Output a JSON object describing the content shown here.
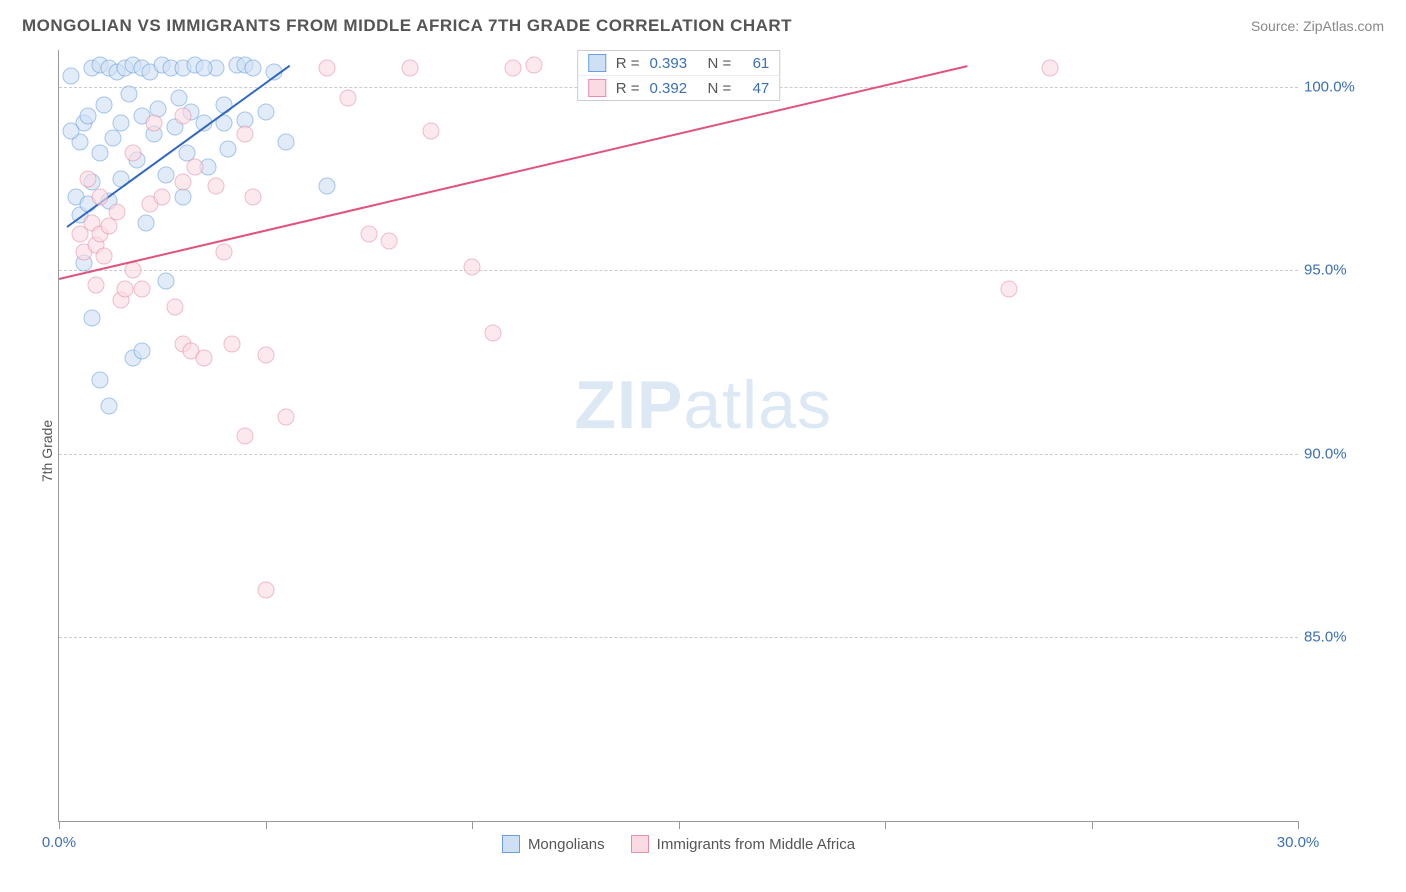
{
  "header": {
    "title": "MONGOLIAN VS IMMIGRANTS FROM MIDDLE AFRICA 7TH GRADE CORRELATION CHART",
    "source_prefix": "Source: ",
    "source_name": "ZipAtlas.com"
  },
  "chart": {
    "type": "scatter",
    "ylabel": "7th Grade",
    "xlim": [
      0,
      30
    ],
    "ylim": [
      80,
      101
    ],
    "xtick_values": [
      0,
      5,
      10,
      15,
      20,
      25,
      30
    ],
    "xtick_labels": [
      "0.0%",
      "",
      "",
      "",
      "",
      "",
      "30.0%"
    ],
    "ytick_values": [
      85,
      90,
      95,
      100
    ],
    "ytick_labels": [
      "85.0%",
      "90.0%",
      "95.0%",
      "100.0%"
    ],
    "grid_color": "#cccccc",
    "background_color": "#ffffff",
    "axis_color": "#999999",
    "tick_label_color_x": "#3b6fb5",
    "tick_label_color_y": "#3b6fb5",
    "series": [
      {
        "name": "Mongolians",
        "marker_fill": "#cfe0f5",
        "marker_stroke": "#6a9fdd",
        "line_color": "#2f66c4",
        "r_value": "0.393",
        "n_value": "61",
        "trend": {
          "x1": 0.2,
          "y1": 96.2,
          "x2": 5.6,
          "y2": 100.6
        },
        "points": [
          [
            0.4,
            97.0
          ],
          [
            0.5,
            96.5
          ],
          [
            0.5,
            98.5
          ],
          [
            0.6,
            99.0
          ],
          [
            0.7,
            96.8
          ],
          [
            0.7,
            99.2
          ],
          [
            0.8,
            97.4
          ],
          [
            0.8,
            100.5
          ],
          [
            1.0,
            98.2
          ],
          [
            1.0,
            100.6
          ],
          [
            1.1,
            99.5
          ],
          [
            1.2,
            96.9
          ],
          [
            1.2,
            100.5
          ],
          [
            1.3,
            98.6
          ],
          [
            1.4,
            100.4
          ],
          [
            1.5,
            99.0
          ],
          [
            1.5,
            97.5
          ],
          [
            1.6,
            100.5
          ],
          [
            1.7,
            99.8
          ],
          [
            1.8,
            100.6
          ],
          [
            1.9,
            98.0
          ],
          [
            2.0,
            100.5
          ],
          [
            2.0,
            99.2
          ],
          [
            2.1,
            96.3
          ],
          [
            2.2,
            100.4
          ],
          [
            2.3,
            98.7
          ],
          [
            2.4,
            99.4
          ],
          [
            2.5,
            100.6
          ],
          [
            2.6,
            97.6
          ],
          [
            2.7,
            100.5
          ],
          [
            2.8,
            98.9
          ],
          [
            2.9,
            99.7
          ],
          [
            3.0,
            100.5
          ],
          [
            3.1,
            98.2
          ],
          [
            3.2,
            99.3
          ],
          [
            3.3,
            100.6
          ],
          [
            3.5,
            99.0
          ],
          [
            3.6,
            97.8
          ],
          [
            3.8,
            100.5
          ],
          [
            4.0,
            99.5
          ],
          [
            4.1,
            98.3
          ],
          [
            4.3,
            100.6
          ],
          [
            4.5,
            99.1
          ],
          [
            0.8,
            93.7
          ],
          [
            1.0,
            92.0
          ],
          [
            1.2,
            91.3
          ],
          [
            1.8,
            92.6
          ],
          [
            2.0,
            92.8
          ],
          [
            2.6,
            94.7
          ],
          [
            4.0,
            99.0
          ],
          [
            4.5,
            100.6
          ],
          [
            4.7,
            100.5
          ],
          [
            5.0,
            99.3
          ],
          [
            5.2,
            100.4
          ],
          [
            5.5,
            98.5
          ],
          [
            0.3,
            98.8
          ],
          [
            0.3,
            100.3
          ],
          [
            0.6,
            95.2
          ],
          [
            6.5,
            97.3
          ],
          [
            3.0,
            97.0
          ],
          [
            3.5,
            100.5
          ]
        ]
      },
      {
        "name": "Immigrants from Middle Africa",
        "marker_fill": "#fadbe3",
        "marker_stroke": "#e78fa9",
        "line_color": "#e0537d",
        "r_value": "0.392",
        "n_value": "47",
        "trend": {
          "x1": 0.0,
          "y1": 94.8,
          "x2": 22.0,
          "y2": 100.6
        },
        "points": [
          [
            0.5,
            96.0
          ],
          [
            0.6,
            95.5
          ],
          [
            0.8,
            96.3
          ],
          [
            0.9,
            95.7
          ],
          [
            1.0,
            96.0
          ],
          [
            1.1,
            95.4
          ],
          [
            1.2,
            96.2
          ],
          [
            1.4,
            96.6
          ],
          [
            1.5,
            94.2
          ],
          [
            1.6,
            94.5
          ],
          [
            1.8,
            95.0
          ],
          [
            2.0,
            94.5
          ],
          [
            2.2,
            96.8
          ],
          [
            2.5,
            97.0
          ],
          [
            2.8,
            94.0
          ],
          [
            3.0,
            97.4
          ],
          [
            3.0,
            93.0
          ],
          [
            3.2,
            92.8
          ],
          [
            3.5,
            92.6
          ],
          [
            3.8,
            97.3
          ],
          [
            4.0,
            95.5
          ],
          [
            4.2,
            93.0
          ],
          [
            4.5,
            98.7
          ],
          [
            4.5,
            90.5
          ],
          [
            4.7,
            97.0
          ],
          [
            5.0,
            92.7
          ],
          [
            5.5,
            91.0
          ],
          [
            6.5,
            100.5
          ],
          [
            7.0,
            99.7
          ],
          [
            7.5,
            96.0
          ],
          [
            8.0,
            95.8
          ],
          [
            8.5,
            100.5
          ],
          [
            9.0,
            98.8
          ],
          [
            10.0,
            95.1
          ],
          [
            10.5,
            93.3
          ],
          [
            11.0,
            100.5
          ],
          [
            11.5,
            100.6
          ],
          [
            5.0,
            86.3
          ],
          [
            1.0,
            97.0
          ],
          [
            1.8,
            98.2
          ],
          [
            2.3,
            99.0
          ],
          [
            3.0,
            99.2
          ],
          [
            3.3,
            97.8
          ],
          [
            0.7,
            97.5
          ],
          [
            0.9,
            94.6
          ],
          [
            24.0,
            100.5
          ],
          [
            23.0,
            94.5
          ]
        ]
      }
    ],
    "legend": {
      "items": [
        {
          "label": "Mongolians",
          "fill": "#cfe0f5",
          "stroke": "#6a9fdd"
        },
        {
          "label": "Immigrants from Middle Africa",
          "fill": "#fadbe3",
          "stroke": "#e78fa9"
        }
      ]
    },
    "watermark": {
      "bold": "ZIP",
      "rest": "atlas"
    },
    "stats_labels": {
      "r": "R =",
      "n": "N ="
    }
  }
}
